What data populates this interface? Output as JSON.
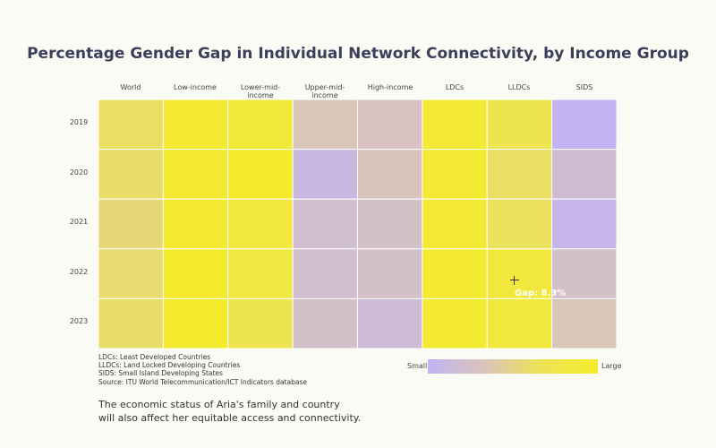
{
  "chart_data": {
    "type": "heatmap",
    "title": "Percentage Gender Gap in Individual Network Connectivity, by Income Group",
    "columns": [
      "World",
      "Low-income",
      "Lower-mid-income",
      "Upper-mid-income",
      "High-income",
      "LDCs",
      "LLDCs",
      "SIDS"
    ],
    "rows": [
      "2019",
      "2020",
      "2021",
      "2022",
      "2023"
    ],
    "values": [
      [
        0.62,
        0.95,
        0.88,
        0.35,
        0.3,
        0.92,
        0.72,
        0.0
      ],
      [
        0.6,
        0.95,
        1.0,
        0.1,
        0.32,
        0.94,
        0.62,
        0.18
      ],
      [
        0.55,
        0.97,
        0.85,
        0.22,
        0.25,
        0.93,
        0.65,
        0.04
      ],
      [
        0.58,
        0.98,
        0.82,
        0.22,
        0.25,
        0.96,
        0.86,
        0.25
      ],
      [
        0.6,
        0.99,
        0.72,
        0.25,
        0.16,
        0.97,
        0.86,
        0.35
      ]
    ],
    "legend": {
      "min_label": "Small",
      "max_label": "Large",
      "colors": [
        "#c2b3f2",
        "#d9c4bb",
        "#ede356",
        "#f5eb2b"
      ]
    },
    "tooltip": {
      "text": "Gap: 8.3%",
      "row": "2022",
      "column": "LLDCs"
    }
  },
  "notes": [
    "LDCs: Least Developed Countries",
    "LLDCs: Land Locked Developing Countries",
    "SIDS: Small Island Developing States",
    "Source: ITU World Telecommunication/ICT Indicators database"
  ],
  "caption": [
    "The economic status of Aria's family and country",
    "will also affect her equitable access and connectivity."
  ]
}
